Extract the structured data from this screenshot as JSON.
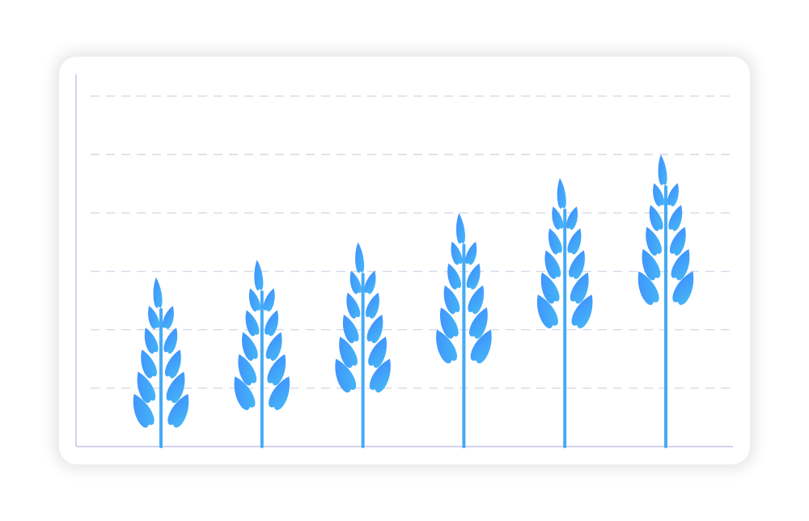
{
  "chart_data": {
    "type": "bar",
    "mark_style": "wheat-stalk pictogram",
    "categories": [
      "",
      "",
      "",
      "",
      "",
      ""
    ],
    "values": [
      2.9,
      3.2,
      3.5,
      4.0,
      4.6,
      5.0
    ],
    "ylim": [
      0,
      6.15
    ],
    "grid": true,
    "grid_lines": [
      1,
      2,
      3,
      4,
      5,
      6
    ],
    "legend": "none",
    "colors": {
      "leaf": "#3f9cff",
      "leaf_alt": "#4fb3f6",
      "stem": "#46aaf5",
      "grid": "#d6dae8",
      "axis": "#d0d3ee"
    }
  }
}
